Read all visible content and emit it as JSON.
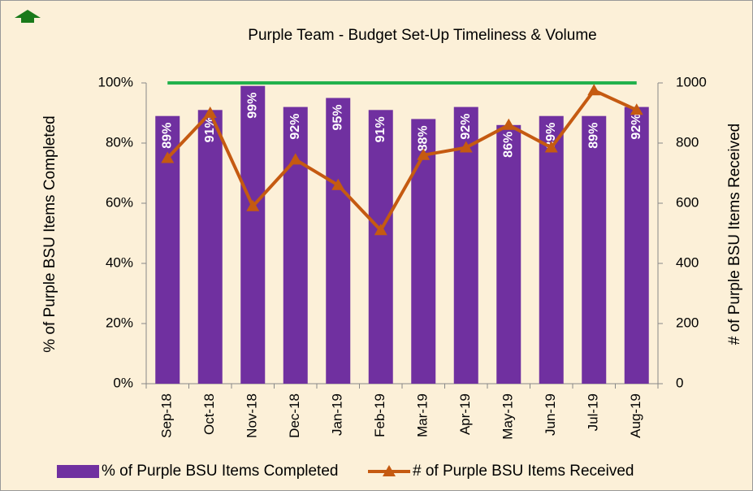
{
  "chart_data": {
    "type": "bar_line",
    "title": "Purple Team - Budget Set-Up Timeliness & Volume",
    "y_label": "% of Purple BSU Items Completed",
    "y2_label": "# of Purple BSU Items Received",
    "categories": [
      "Sep-18",
      "Oct-18",
      "Nov-18",
      "Dec-18",
      "Jan-19",
      "Feb-19",
      "Mar-19",
      "Apr-19",
      "May-19",
      "Jun-19",
      "Jul-19",
      "Aug-19"
    ],
    "series": [
      {
        "name": "% of Purple BSU Items Completed",
        "type": "bar",
        "color": "#7030a0",
        "values": [
          89,
          91,
          99,
          92,
          95,
          91,
          88,
          92,
          86,
          89,
          89,
          92
        ],
        "value_labels": [
          "89%",
          "91%",
          "99%",
          "92%",
          "95%",
          "91%",
          "88%",
          "92%",
          "86%",
          "89%",
          "89%",
          "92%"
        ]
      },
      {
        "name": "# of Purple BSU Items Received",
        "type": "line",
        "axis": "y2",
        "color": "#c55a11",
        "values": [
          750,
          900,
          590,
          745,
          660,
          510,
          760,
          785,
          860,
          785,
          975,
          910
        ]
      }
    ],
    "target_line": {
      "value": 100,
      "color": "#22b14c"
    },
    "ylim": [
      0,
      100
    ],
    "yticks": [
      {
        "value": 0,
        "label": "0%"
      },
      {
        "value": 20,
        "label": "20%"
      },
      {
        "value": 40,
        "label": "40%"
      },
      {
        "value": 60,
        "label": "60%"
      },
      {
        "value": 80,
        "label": "80%"
      },
      {
        "value": 100,
        "label": "100%"
      }
    ],
    "y2lim": [
      0,
      1000
    ],
    "y2ticks": [
      0,
      200,
      400,
      600,
      800,
      1000
    ],
    "legend": "bottom"
  }
}
